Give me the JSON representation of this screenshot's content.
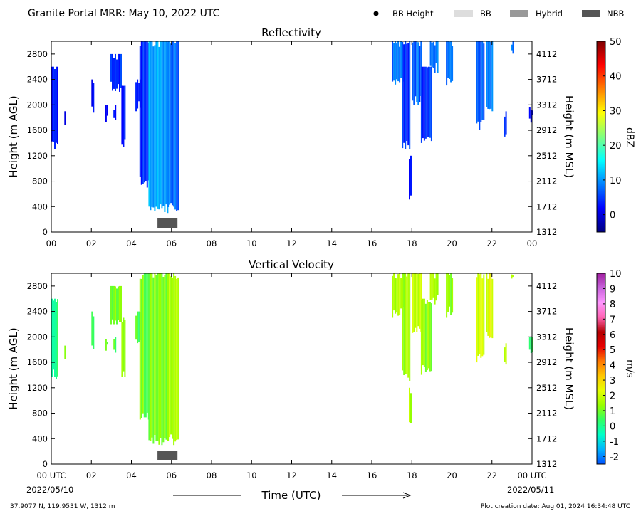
{
  "header": {
    "title": "Granite Portal MRR:  May 10, 2022 UTC",
    "legend": [
      {
        "label": "BB Height",
        "kind": "dot",
        "color": "#000000"
      },
      {
        "label": "BB",
        "kind": "swatch",
        "color": "#dddddd"
      },
      {
        "label": "Hybrid",
        "kind": "swatch",
        "color": "#999999"
      },
      {
        "label": "NBB",
        "kind": "swatch",
        "color": "#555555"
      }
    ]
  },
  "footer": {
    "location": "37.9077 N, 119.9531 W, 1312 m",
    "creation": "Plot creation date: Aug 01, 2024 16:34:48 UTC",
    "xlabel": "Time (UTC)",
    "start_date": "2022/05/10",
    "end_date": "2022/05/11"
  },
  "chart_data": [
    {
      "type": "heatmap",
      "title": "Reflectivity",
      "ylabel": "Height (m AGL)",
      "y2label": "Height (m MSL)",
      "xticks": [
        "00",
        "02",
        "04",
        "06",
        "08",
        "10",
        "12",
        "14",
        "16",
        "18",
        "20",
        "22",
        "00"
      ],
      "yticks": [
        0,
        400,
        800,
        1200,
        1600,
        2000,
        2400,
        2800
      ],
      "y2ticks": [
        1312,
        1712,
        2112,
        2512,
        2912,
        3312,
        3712,
        4112
      ],
      "xlim_hours": [
        0,
        24
      ],
      "ylim": [
        0,
        3000
      ],
      "colorbar": {
        "label": "dBZ",
        "range": [
          -5,
          50
        ],
        "ticks": [
          0,
          10,
          20,
          30,
          40,
          50
        ],
        "colors": [
          "#00007f",
          "#0000ff",
          "#007fff",
          "#00ffff",
          "#7fff7f",
          "#ffff00",
          "#ff7f00",
          "#ff0000",
          "#7f0000"
        ]
      },
      "bands": [
        {
          "start_hour": 0.0,
          "end_hour": 0.3,
          "bottom_m": 1300,
          "top_m": 2600,
          "value": 3
        },
        {
          "start_hour": 0.65,
          "end_hour": 0.7,
          "bottom_m": 1600,
          "top_m": 1900,
          "value": 2
        },
        {
          "start_hour": 2.0,
          "end_hour": 2.1,
          "bottom_m": 1800,
          "top_m": 2400,
          "value": 1
        },
        {
          "start_hour": 2.7,
          "end_hour": 2.8,
          "bottom_m": 1700,
          "top_m": 2000,
          "value": 2
        },
        {
          "start_hour": 2.95,
          "end_hour": 3.5,
          "bottom_m": 2200,
          "top_m": 2800,
          "value": 4
        },
        {
          "start_hour": 3.1,
          "end_hour": 3.2,
          "bottom_m": 1700,
          "top_m": 2000,
          "value": 3
        },
        {
          "start_hour": 3.5,
          "end_hour": 3.65,
          "bottom_m": 1300,
          "top_m": 2300,
          "value": 3
        },
        {
          "start_hour": 4.2,
          "end_hour": 4.45,
          "bottom_m": 1900,
          "top_m": 2400,
          "value": 2
        },
        {
          "start_hour": 4.4,
          "end_hour": 4.85,
          "bottom_m": 700,
          "top_m": 3000,
          "value": 4
        },
        {
          "start_hour": 4.85,
          "end_hour": 5.8,
          "bottom_m": 300,
          "top_m": 3000,
          "value": 11
        },
        {
          "start_hour": 5.8,
          "end_hour": 6.35,
          "bottom_m": 300,
          "top_m": 3000,
          "value": 8
        },
        {
          "start_hour": 17.0,
          "end_hour": 17.6,
          "bottom_m": 2300,
          "top_m": 3000,
          "value": 8
        },
        {
          "start_hour": 17.5,
          "end_hour": 17.9,
          "bottom_m": 1300,
          "top_m": 3000,
          "value": 5
        },
        {
          "start_hour": 17.85,
          "end_hour": 17.95,
          "bottom_m": 500,
          "top_m": 1200,
          "value": 3
        },
        {
          "start_hour": 18.0,
          "end_hour": 18.45,
          "bottom_m": 2000,
          "top_m": 3000,
          "value": 7
        },
        {
          "start_hour": 18.45,
          "end_hour": 19.0,
          "bottom_m": 1400,
          "top_m": 2600,
          "value": 5
        },
        {
          "start_hour": 18.9,
          "end_hour": 19.3,
          "bottom_m": 2500,
          "top_m": 3000,
          "value": 9
        },
        {
          "start_hour": 19.7,
          "end_hour": 20.0,
          "bottom_m": 2300,
          "top_m": 3000,
          "value": 7
        },
        {
          "start_hour": 21.2,
          "end_hour": 21.6,
          "bottom_m": 1600,
          "top_m": 3000,
          "value": 7
        },
        {
          "start_hour": 21.7,
          "end_hour": 22.0,
          "bottom_m": 1900,
          "top_m": 3000,
          "value": 9
        },
        {
          "start_hour": 22.6,
          "end_hour": 22.7,
          "bottom_m": 1500,
          "top_m": 1900,
          "value": 4
        },
        {
          "start_hour": 22.95,
          "end_hour": 23.05,
          "bottom_m": 2800,
          "top_m": 3000,
          "value": 8
        },
        {
          "start_hour": 23.85,
          "end_hour": 24.0,
          "bottom_m": 1700,
          "top_m": 2000,
          "value": 3
        }
      ],
      "bright_band": {
        "type": "NBB",
        "start_hour": 5.3,
        "end_hour": 6.3
      }
    },
    {
      "type": "heatmap",
      "title": "Vertical Velocity",
      "ylabel": "Height (m AGL)",
      "y2label": "Height (m MSL)",
      "xticks": [
        "00 UTC",
        "02",
        "04",
        "06",
        "08",
        "10",
        "12",
        "14",
        "16",
        "18",
        "20",
        "22",
        "00 UTC"
      ],
      "yticks": [
        0,
        400,
        800,
        1200,
        1600,
        2000,
        2400,
        2800
      ],
      "y2ticks": [
        1312,
        1712,
        2112,
        2512,
        2912,
        3312,
        3712,
        4112
      ],
      "xlim_hours": [
        0,
        24
      ],
      "ylim": [
        0,
        3000
      ],
      "colorbar": {
        "label": "m/s",
        "range": [
          -2.5,
          10
        ],
        "ticks": [
          -2,
          -1,
          0,
          1,
          2,
          3,
          4,
          5,
          6,
          7,
          8,
          9,
          10
        ],
        "colors": [
          "#0050ff",
          "#00b4ff",
          "#00ffc8",
          "#32ff64",
          "#96ff00",
          "#e6ff00",
          "#ffc800",
          "#ff7800",
          "#e60000",
          "#b40000",
          "#ff64b4",
          "#ff96ff",
          "#c864dc",
          "#a01ea0"
        ]
      },
      "bands": [
        {
          "start_hour": 0.0,
          "end_hour": 0.3,
          "bottom_m": 1300,
          "top_m": 2600,
          "value": 0.2
        },
        {
          "start_hour": 0.65,
          "end_hour": 0.7,
          "bottom_m": 1600,
          "top_m": 1900,
          "value": 1.5
        },
        {
          "start_hour": 2.0,
          "end_hour": 2.1,
          "bottom_m": 1800,
          "top_m": 2400,
          "value": 0.3
        },
        {
          "start_hour": 2.7,
          "end_hour": 2.8,
          "bottom_m": 1700,
          "top_m": 2000,
          "value": 0.8
        },
        {
          "start_hour": 2.95,
          "end_hour": 3.5,
          "bottom_m": 2200,
          "top_m": 2800,
          "value": 1.0
        },
        {
          "start_hour": 3.1,
          "end_hour": 3.2,
          "bottom_m": 1700,
          "top_m": 2000,
          "value": 0.5
        },
        {
          "start_hour": 3.5,
          "end_hour": 3.65,
          "bottom_m": 1300,
          "top_m": 2300,
          "value": 1.2
        },
        {
          "start_hour": 4.2,
          "end_hour": 4.45,
          "bottom_m": 1900,
          "top_m": 2400,
          "value": 0.6
        },
        {
          "start_hour": 4.4,
          "end_hour": 4.85,
          "bottom_m": 700,
          "top_m": 3000,
          "value": 1.0
        },
        {
          "start_hour": 4.85,
          "end_hour": 5.8,
          "bottom_m": 300,
          "top_m": 3000,
          "value": 1.3
        },
        {
          "start_hour": 5.8,
          "end_hour": 6.35,
          "bottom_m": 300,
          "top_m": 3000,
          "value": 1.6
        },
        {
          "start_hour": 17.0,
          "end_hour": 17.6,
          "bottom_m": 2300,
          "top_m": 3000,
          "value": 1.7
        },
        {
          "start_hour": 17.5,
          "end_hour": 17.9,
          "bottom_m": 1300,
          "top_m": 3000,
          "value": 1.5
        },
        {
          "start_hour": 17.85,
          "end_hour": 17.95,
          "bottom_m": 500,
          "top_m": 1200,
          "value": 1.6
        },
        {
          "start_hour": 18.0,
          "end_hour": 18.45,
          "bottom_m": 2000,
          "top_m": 3000,
          "value": 1.8
        },
        {
          "start_hour": 18.45,
          "end_hour": 19.0,
          "bottom_m": 1400,
          "top_m": 2600,
          "value": 1.2
        },
        {
          "start_hour": 18.9,
          "end_hour": 19.3,
          "bottom_m": 2500,
          "top_m": 3000,
          "value": 1.5
        },
        {
          "start_hour": 19.7,
          "end_hour": 20.0,
          "bottom_m": 2300,
          "top_m": 3000,
          "value": 1.3
        },
        {
          "start_hour": 21.2,
          "end_hour": 21.6,
          "bottom_m": 1600,
          "top_m": 3000,
          "value": 1.9
        },
        {
          "start_hour": 21.7,
          "end_hour": 22.0,
          "bottom_m": 1900,
          "top_m": 3000,
          "value": 2.3
        },
        {
          "start_hour": 22.6,
          "end_hour": 22.7,
          "bottom_m": 1500,
          "top_m": 1900,
          "value": 1.8
        },
        {
          "start_hour": 22.95,
          "end_hour": 23.05,
          "bottom_m": 2800,
          "top_m": 3000,
          "value": 2.0
        },
        {
          "start_hour": 23.85,
          "end_hour": 24.0,
          "bottom_m": 1700,
          "top_m": 2000,
          "value": 0.3
        }
      ],
      "bright_band": {
        "type": "NBB",
        "start_hour": 5.3,
        "end_hour": 6.3
      }
    }
  ]
}
